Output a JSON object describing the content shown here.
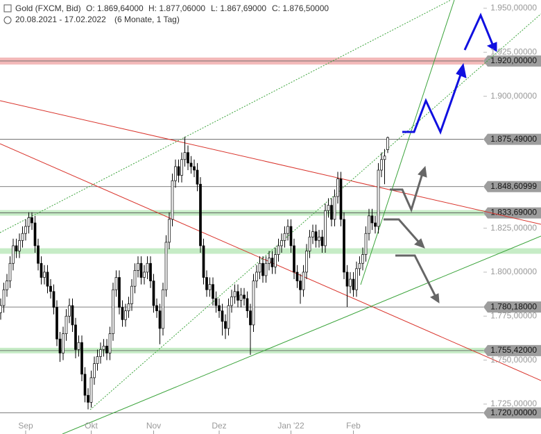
{
  "chart_data": {
    "type": "candlestick",
    "title": "Gold (FXCM, Bid)",
    "ohlc_text": [
      "O: 1.869,64000",
      "H: 1.877,06000",
      "L: 1.867,69000",
      "C: 1.876,50000"
    ],
    "date_range": "20.08.2021 - 17.02.2022",
    "period": "(6 Monate, 1 Tag)",
    "categories": [
      null,
      null,
      null,
      null,
      null,
      null,
      null,
      null,
      "Sep",
      null,
      null,
      null,
      null,
      null,
      null,
      null,
      null,
      null,
      null,
      null,
      null,
      null,
      null,
      null,
      null,
      null,
      null,
      null,
      null,
      "Okt",
      null,
      null,
      null,
      null,
      null,
      null,
      null,
      null,
      null,
      null,
      null,
      null,
      null,
      null,
      null,
      null,
      null,
      null,
      null,
      "Nov",
      null,
      null,
      null,
      null,
      null,
      null,
      null,
      null,
      null,
      null,
      null,
      null,
      null,
      null,
      null,
      null,
      null,
      null,
      null,
      null,
      "Dez",
      null,
      null,
      null,
      null,
      null,
      null,
      null,
      null,
      null,
      null,
      null,
      null,
      null,
      null,
      null,
      null,
      null,
      null,
      null,
      null,
      null,
      null,
      "Jan '22",
      null,
      null,
      null,
      null,
      null,
      null,
      null,
      null,
      null,
      null,
      null,
      null,
      null,
      null,
      null,
      null,
      null,
      null,
      null,
      "Feb",
      null,
      null,
      null,
      null,
      null,
      null,
      null,
      null,
      null,
      null,
      null
    ],
    "open": [
      1777,
      1781,
      1790,
      1795,
      1805,
      1815,
      1812,
      1818,
      1822,
      1826,
      1831,
      1828,
      1815,
      1805,
      1797,
      1800,
      1792,
      1789,
      1780,
      1762,
      1754,
      1765,
      1775,
      1781,
      1770,
      1756,
      1760,
      1742,
      1730,
      1726,
      1740,
      1748,
      1752,
      1756,
      1758,
      1754,
      1765,
      1790,
      1797,
      1780,
      1773,
      1778,
      1782,
      1792,
      1801,
      1805,
      1797,
      1800,
      1805,
      1795,
      1781,
      1778,
      1768,
      1790,
      1817,
      1830,
      1852,
      1860,
      1855,
      1864,
      1868,
      1862,
      1860,
      1858,
      1850,
      1815,
      1797,
      1790,
      1793,
      1785,
      1781,
      1778,
      1772,
      1768,
      1781,
      1786,
      1789,
      1784,
      1787,
      1785,
      1778,
      1770,
      1795,
      1800,
      1805,
      1798,
      1805,
      1808,
      1803,
      1810,
      1815,
      1818,
      1822,
      1826,
      1815,
      1800,
      1795,
      1790,
      1800,
      1812,
      1820,
      1823,
      1818,
      1820,
      1815,
      1835,
      1838,
      1830,
      1843,
      1853,
      1830,
      1800,
      1792,
      1796,
      1790,
      1802,
      1805,
      1810,
      1822,
      1832,
      1828,
      1826,
      1858,
      1864,
      1869.64
    ],
    "high": [
      1785,
      1794,
      1799,
      1809,
      1819,
      1819,
      1822,
      1826,
      1830,
      1834,
      1834,
      1832,
      1819,
      1809,
      1804,
      1804,
      1796,
      1793,
      1784,
      1766,
      1769,
      1779,
      1785,
      1785,
      1774,
      1764,
      1764,
      1746,
      1734,
      1744,
      1752,
      1756,
      1760,
      1762,
      1762,
      1769,
      1794,
      1801,
      1801,
      1784,
      1782,
      1786,
      1796,
      1805,
      1809,
      1809,
      1804,
      1809,
      1809,
      1799,
      1785,
      1782,
      1794,
      1821,
      1834,
      1856,
      1864,
      1864,
      1868,
      1877,
      1872,
      1866,
      1864,
      1862,
      1854,
      1819,
      1801,
      1797,
      1797,
      1789,
      1785,
      1782,
      1776,
      1785,
      1790,
      1793,
      1793,
      1791,
      1791,
      1789,
      1782,
      1799,
      1804,
      1809,
      1809,
      1809,
      1812,
      1812,
      1814,
      1819,
      1822,
      1826,
      1830,
      1830,
      1819,
      1804,
      1799,
      1804,
      1816,
      1824,
      1827,
      1827,
      1824,
      1824,
      1839,
      1842,
      1842,
      1847,
      1857,
      1857,
      1834,
      1804,
      1800,
      1800,
      1806,
      1809,
      1814,
      1826,
      1836,
      1836,
      1832,
      1862,
      1868,
      1870,
      1877.06
    ],
    "low": [
      1773,
      1777,
      1786,
      1791,
      1801,
      1808,
      1808,
      1814,
      1818,
      1822,
      1824,
      1811,
      1801,
      1793,
      1793,
      1788,
      1785,
      1776,
      1758,
      1749,
      1750,
      1761,
      1771,
      1766,
      1751,
      1752,
      1738,
      1726,
      1722,
      1723,
      1736,
      1744,
      1748,
      1752,
      1750,
      1750,
      1761,
      1786,
      1776,
      1769,
      1769,
      1774,
      1778,
      1788,
      1797,
      1793,
      1793,
      1796,
      1791,
      1777,
      1774,
      1759,
      1764,
      1786,
      1813,
      1826,
      1848,
      1851,
      1851,
      1860,
      1858,
      1856,
      1854,
      1846,
      1811,
      1793,
      1786,
      1786,
      1781,
      1777,
      1774,
      1764,
      1762,
      1764,
      1777,
      1782,
      1780,
      1780,
      1781,
      1774,
      1753,
      1766,
      1791,
      1796,
      1794,
      1794,
      1801,
      1799,
      1799,
      1806,
      1811,
      1814,
      1818,
      1811,
      1796,
      1791,
      1782,
      1786,
      1796,
      1808,
      1816,
      1814,
      1814,
      1811,
      1811,
      1831,
      1826,
      1826,
      1839,
      1826,
      1796,
      1780.18,
      1788,
      1786,
      1786,
      1798,
      1801,
      1806,
      1818,
      1824,
      1822,
      1822,
      1854,
      1850,
      1867.69
    ],
    "close": [
      1781,
      1790,
      1795,
      1805,
      1815,
      1812,
      1818,
      1822,
      1826,
      1831,
      1828,
      1815,
      1805,
      1797,
      1800,
      1792,
      1789,
      1780,
      1762,
      1754,
      1765,
      1775,
      1781,
      1770,
      1756,
      1760,
      1742,
      1730,
      1726,
      1740,
      1748,
      1752,
      1756,
      1758,
      1754,
      1765,
      1790,
      1797,
      1780,
      1773,
      1778,
      1782,
      1792,
      1801,
      1805,
      1797,
      1800,
      1805,
      1795,
      1781,
      1778,
      1768,
      1790,
      1817,
      1830,
      1852,
      1860,
      1855,
      1864,
      1868,
      1862,
      1860,
      1858,
      1850,
      1815,
      1797,
      1790,
      1793,
      1785,
      1781,
      1778,
      1772,
      1768,
      1781,
      1786,
      1789,
      1784,
      1787,
      1785,
      1778,
      1770,
      1795,
      1800,
      1805,
      1798,
      1805,
      1808,
      1803,
      1810,
      1815,
      1818,
      1822,
      1826,
      1815,
      1800,
      1795,
      1790,
      1800,
      1812,
      1820,
      1823,
      1818,
      1820,
      1815,
      1835,
      1838,
      1830,
      1843,
      1853,
      1830,
      1800,
      1792,
      1796,
      1790,
      1802,
      1805,
      1810,
      1822,
      1832,
      1828,
      1826,
      1858,
      1864,
      1866,
      1876.5
    ],
    "up_color": "#ffffff",
    "down_color": "#000000",
    "ylim": [
      1708,
      1954.7
    ],
    "yticks": [
      {
        "value": 1950,
        "label": "1.950,00000"
      },
      {
        "value": 1925,
        "label": "1.925,00000"
      },
      {
        "value": 1900,
        "label": "1.900,00000"
      },
      {
        "value": 1825,
        "label": "1.825,00000"
      },
      {
        "value": 1800,
        "label": "1.800,00000"
      },
      {
        "value": 1775,
        "label": "1.775,00000"
      },
      {
        "value": 1750,
        "label": "1.750,00000"
      },
      {
        "value": 1725,
        "label": "1.725,00000"
      }
    ],
    "price_levels": [
      {
        "value": 1920,
        "label": "1.920,00000"
      },
      {
        "value": 1875.49,
        "label": "1.875,49000"
      },
      {
        "value": 1848.60999,
        "label": "1.848,60999"
      },
      {
        "value": 1833.69,
        "label": "1.833,69000"
      },
      {
        "value": 1780.18,
        "label": "1.780,18000"
      },
      {
        "value": 1755.42,
        "label": "1.755,42000"
      },
      {
        "value": 1720,
        "label": "1.720,00000"
      }
    ],
    "resistance_zones": [
      1920
    ],
    "support_zones": [
      1833.69,
      1812,
      1755.42
    ],
    "resistance_color": "#f3b9b9",
    "support_color": "#c6ecc6"
  }
}
